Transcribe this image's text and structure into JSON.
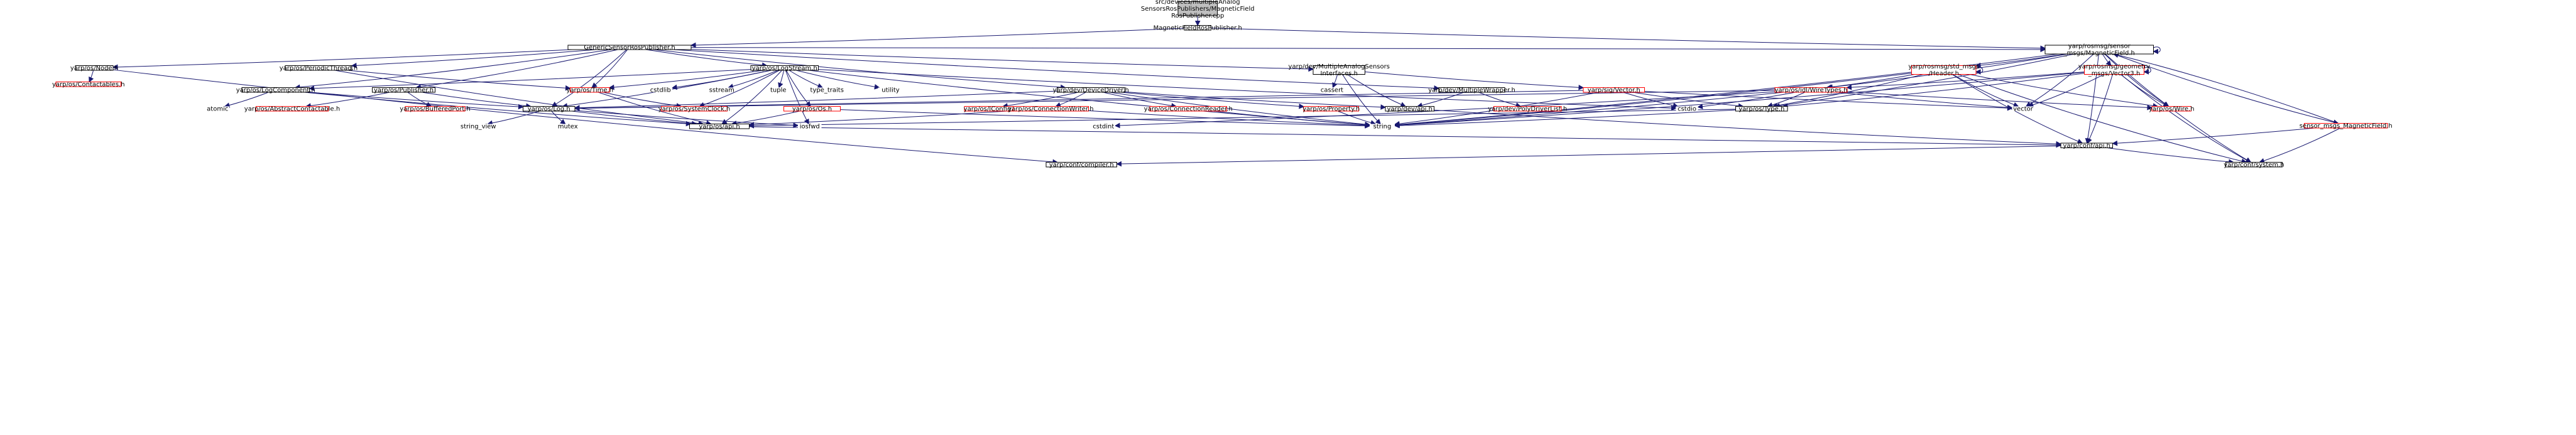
{
  "diagram": {
    "type": "include-dependency-graph",
    "nodes": [
      {
        "id": "root",
        "lines": [
          "src/devices/multipleAnalog",
          "SensorsRosPublishers/MagneticField",
          "RosPublisher.cpp"
        ],
        "style": "root"
      },
      {
        "id": "mfrp",
        "lines": [
          "MagneticFieldRosPublisher.h"
        ],
        "style": "normal"
      },
      {
        "id": "gsrp",
        "lines": [
          "GenericSensorRosPublisher.h"
        ],
        "style": "normal"
      },
      {
        "id": "rosmag",
        "lines": [
          "yarp/rosmsg/sensor",
          "_msgs/MagneticField.h"
        ],
        "style": "normal"
      },
      {
        "id": "node",
        "lines": [
          "yarp/os/Node.h"
        ],
        "style": "normal"
      },
      {
        "id": "periodic",
        "lines": [
          "yarp/os/PeriodicThread.h"
        ],
        "style": "normal"
      },
      {
        "id": "logstream",
        "lines": [
          "yarp/os/LogStream.h"
        ],
        "style": "normal"
      },
      {
        "id": "masi",
        "lines": [
          "yarp/dev/MultipleAnalogSensors",
          "Interfaces.h"
        ],
        "style": "normal"
      },
      {
        "id": "header",
        "lines": [
          "yarp/rosmsg/std_msgs",
          "/Header.h"
        ],
        "style": "red"
      },
      {
        "id": "vector3",
        "lines": [
          "yarp/rosmsg/geometry",
          "_msgs/Vector3.h"
        ],
        "style": "red"
      },
      {
        "id": "contactables",
        "lines": [
          "yarp/os/Contactables.h"
        ],
        "style": "red"
      },
      {
        "id": "publisher",
        "lines": [
          "yarp/os/Publisher.h"
        ],
        "style": "normal"
      },
      {
        "id": "logcomp",
        "lines": [
          "yarp/os/LogComponent.h"
        ],
        "style": "normal"
      },
      {
        "id": "time",
        "lines": [
          "yarp/os/Time.h"
        ],
        "style": "red"
      },
      {
        "id": "cstdlib",
        "lines": [
          "cstdlib"
        ],
        "style": "gray"
      },
      {
        "id": "sstream",
        "lines": [
          "sstream"
        ],
        "style": "gray"
      },
      {
        "id": "tuple",
        "lines": [
          "tuple"
        ],
        "style": "gray"
      },
      {
        "id": "typetraits",
        "lines": [
          "type_traits"
        ],
        "style": "gray"
      },
      {
        "id": "utility",
        "lines": [
          "utility"
        ],
        "style": "gray"
      },
      {
        "id": "devdriver",
        "lines": [
          "yarp/dev/DeviceDriver.h"
        ],
        "style": "normal"
      },
      {
        "id": "cassert",
        "lines": [
          "cassert"
        ],
        "style": "gray"
      },
      {
        "id": "mwrapper",
        "lines": [
          "yarp/dev/MultipleWrapper.h"
        ],
        "style": "normal"
      },
      {
        "id": "sigvector",
        "lines": [
          "yarp/sig/Vector.h"
        ],
        "style": "red"
      },
      {
        "id": "wiretypes",
        "lines": [
          "yarp/os/idl/WireTypes.h"
        ],
        "style": "red"
      },
      {
        "id": "atomic",
        "lines": [
          "atomic"
        ],
        "style": "gray"
      },
      {
        "id": "abscont",
        "lines": [
          "yarp/os/AbstractContactable.h"
        ],
        "style": "red"
      },
      {
        "id": "bufport",
        "lines": [
          "yarp/os/BufferedPort.h"
        ],
        "style": "red"
      },
      {
        "id": "log",
        "lines": [
          "yarp/os/Log.h"
        ],
        "style": "normal"
      },
      {
        "id": "sysclock",
        "lines": [
          "yarp/os/SystemClock.h"
        ],
        "style": "red"
      },
      {
        "id": "os",
        "lines": [
          "yarp/os/Os.h"
        ],
        "style": "red"
      },
      {
        "id": "iconfig",
        "lines": [
          "yarp/os/IConfig.h"
        ],
        "style": "red"
      },
      {
        "id": "connwriter",
        "lines": [
          "yarp/os/ConnectionWriter.h"
        ],
        "style": "red"
      },
      {
        "id": "connreader",
        "lines": [
          "yarp/os/ConnectionReader.h"
        ],
        "style": "red"
      },
      {
        "id": "property",
        "lines": [
          "yarp/os/Property.h"
        ],
        "style": "red"
      },
      {
        "id": "devapi",
        "lines": [
          "yarp/dev/api.h"
        ],
        "style": "normal"
      },
      {
        "id": "polydriver",
        "lines": [
          "yarp/dev/PolyDriverList.h"
        ],
        "style": "red"
      },
      {
        "id": "cstdio",
        "lines": [
          "cstdio"
        ],
        "style": "gray"
      },
      {
        "id": "ostype",
        "lines": [
          "yarp/os/Type.h"
        ],
        "style": "normal"
      },
      {
        "id": "vector",
        "lines": [
          "vector"
        ],
        "style": "gray"
      },
      {
        "id": "wire",
        "lines": [
          "yarp/os/Wire.h"
        ],
        "style": "red"
      },
      {
        "id": "smmag",
        "lines": [
          "sensor_msgs_MagneticField.h"
        ],
        "style": "red"
      },
      {
        "id": "stringview",
        "lines": [
          "string_view"
        ],
        "style": "gray"
      },
      {
        "id": "mutex",
        "lines": [
          "mutex"
        ],
        "style": "gray"
      },
      {
        "id": "osapi",
        "lines": [
          "yarp/os/api.h"
        ],
        "style": "normal"
      },
      {
        "id": "iosfwd",
        "lines": [
          "iosfwd"
        ],
        "style": "gray"
      },
      {
        "id": "cstdint",
        "lines": [
          "cstdint"
        ],
        "style": "gray"
      },
      {
        "id": "string",
        "lines": [
          "string"
        ],
        "style": "gray"
      },
      {
        "id": "confapi",
        "lines": [
          "yarp/conf/api.h"
        ],
        "style": "normal"
      },
      {
        "id": "compiler",
        "lines": [
          "yarp/conf/compiler.h"
        ],
        "style": "normal"
      },
      {
        "id": "system",
        "lines": [
          "yarp/conf/system.h"
        ],
        "style": "normal"
      }
    ],
    "edges": [
      [
        "root",
        "mfrp"
      ],
      [
        "mfrp",
        "gsrp"
      ],
      [
        "mfrp",
        "rosmag"
      ],
      [
        "gsrp",
        "node"
      ],
      [
        "gsrp",
        "periodic"
      ],
      [
        "gsrp",
        "logstream"
      ],
      [
        "gsrp",
        "masi"
      ],
      [
        "gsrp",
        "publisher"
      ],
      [
        "gsrp",
        "logcomp"
      ],
      [
        "gsrp",
        "devdriver"
      ],
      [
        "gsrp",
        "mwrapper"
      ],
      [
        "gsrp",
        "log"
      ],
      [
        "gsrp",
        "time"
      ],
      [
        "gsrp",
        "rosmag"
      ],
      [
        "node",
        "contactables"
      ],
      [
        "node",
        "compiler"
      ],
      [
        "periodic",
        "osapi"
      ],
      [
        "periodic",
        "time"
      ],
      [
        "logstream",
        "logcomp"
      ],
      [
        "logstream",
        "time"
      ],
      [
        "logstream",
        "cstdlib"
      ],
      [
        "logstream",
        "sstream"
      ],
      [
        "logstream",
        "tuple"
      ],
      [
        "logstream",
        "typetraits"
      ],
      [
        "logstream",
        "utility"
      ],
      [
        "logstream",
        "log"
      ],
      [
        "logstream",
        "sysclock"
      ],
      [
        "logstream",
        "os"
      ],
      [
        "logstream",
        "osapi"
      ],
      [
        "logstream",
        "string"
      ],
      [
        "logstream",
        "iosfwd"
      ],
      [
        "logstream",
        "cstdio"
      ],
      [
        "masi",
        "cassert"
      ],
      [
        "masi",
        "sigvector"
      ],
      [
        "masi",
        "devapi"
      ],
      [
        "masi",
        "string"
      ],
      [
        "publisher",
        "abscont"
      ],
      [
        "publisher",
        "bufport"
      ],
      [
        "publisher",
        "log"
      ],
      [
        "logcomp",
        "atomic"
      ],
      [
        "logcomp",
        "log"
      ],
      [
        "logcomp",
        "osapi"
      ],
      [
        "time",
        "sysclock"
      ],
      [
        "time",
        "osapi"
      ],
      [
        "devdriver",
        "iconfig"
      ],
      [
        "devdriver",
        "connwriter"
      ],
      [
        "devdriver",
        "connreader"
      ],
      [
        "devdriver",
        "property"
      ],
      [
        "devdriver",
        "devapi"
      ],
      [
        "devdriver",
        "log"
      ],
      [
        "devdriver",
        "string"
      ],
      [
        "mwrapper",
        "devapi"
      ],
      [
        "mwrapper",
        "polydriver"
      ],
      [
        "sigvector",
        "log"
      ],
      [
        "sigvector",
        "ostype"
      ],
      [
        "sigvector",
        "string"
      ],
      [
        "sigvector",
        "cstdio"
      ],
      [
        "sigvector",
        "vector"
      ],
      [
        "log",
        "stringview"
      ],
      [
        "log",
        "mutex"
      ],
      [
        "log",
        "osapi"
      ],
      [
        "log",
        "iosfwd"
      ],
      [
        "os",
        "osapi"
      ],
      [
        "os",
        "string"
      ],
      [
        "connwriter",
        "string"
      ],
      [
        "connwriter",
        "osapi"
      ],
      [
        "connreader",
        "string"
      ],
      [
        "property",
        "string"
      ],
      [
        "devapi",
        "confapi"
      ],
      [
        "osapi",
        "confapi"
      ],
      [
        "rosmag",
        "header"
      ],
      [
        "rosmag",
        "vector3"
      ],
      [
        "rosmag",
        "smmag"
      ],
      [
        "rosmag",
        "wiretypes"
      ],
      [
        "rosmag",
        "ostype"
      ],
      [
        "rosmag",
        "wire"
      ],
      [
        "rosmag",
        "vector"
      ],
      [
        "rosmag",
        "string"
      ],
      [
        "rosmag",
        "confapi"
      ],
      [
        "rosmag",
        "system"
      ],
      [
        "rosmag",
        "rosmag"
      ],
      [
        "header",
        "wiretypes"
      ],
      [
        "header",
        "ostype"
      ],
      [
        "header",
        "vector"
      ],
      [
        "header",
        "wire"
      ],
      [
        "header",
        "string"
      ],
      [
        "header",
        "confapi"
      ],
      [
        "header",
        "system"
      ],
      [
        "header",
        "header"
      ],
      [
        "vector3",
        "wiretypes"
      ],
      [
        "vector3",
        "ostype"
      ],
      [
        "vector3",
        "vector"
      ],
      [
        "vector3",
        "wire"
      ],
      [
        "vector3",
        "string"
      ],
      [
        "vector3",
        "confapi"
      ],
      [
        "vector3",
        "system"
      ],
      [
        "vector3",
        "vector3"
      ],
      [
        "wiretypes",
        "ostype"
      ],
      [
        "wiretypes",
        "string"
      ],
      [
        "wiretypes",
        "vector"
      ],
      [
        "wiretypes",
        "cstdint"
      ],
      [
        "wiretypes",
        "wire"
      ],
      [
        "wiretypes",
        "cstdio"
      ],
      [
        "wiretypes",
        "log"
      ],
      [
        "ostype",
        "string"
      ],
      [
        "ostype",
        "osapi"
      ],
      [
        "smmag",
        "rosmag"
      ],
      [
        "smmag",
        "confapi"
      ],
      [
        "smmag",
        "system"
      ],
      [
        "confapi",
        "compiler"
      ],
      [
        "confapi",
        "system"
      ]
    ],
    "colors": {
      "edge": "#191970",
      "normal_border": "#000000",
      "red_border": "#ff0000",
      "gray_border": "#bfbfbf",
      "gray_text": "#8c8c8c",
      "root_fill": "#bfbfbf",
      "red_text": "#ff0000"
    }
  }
}
